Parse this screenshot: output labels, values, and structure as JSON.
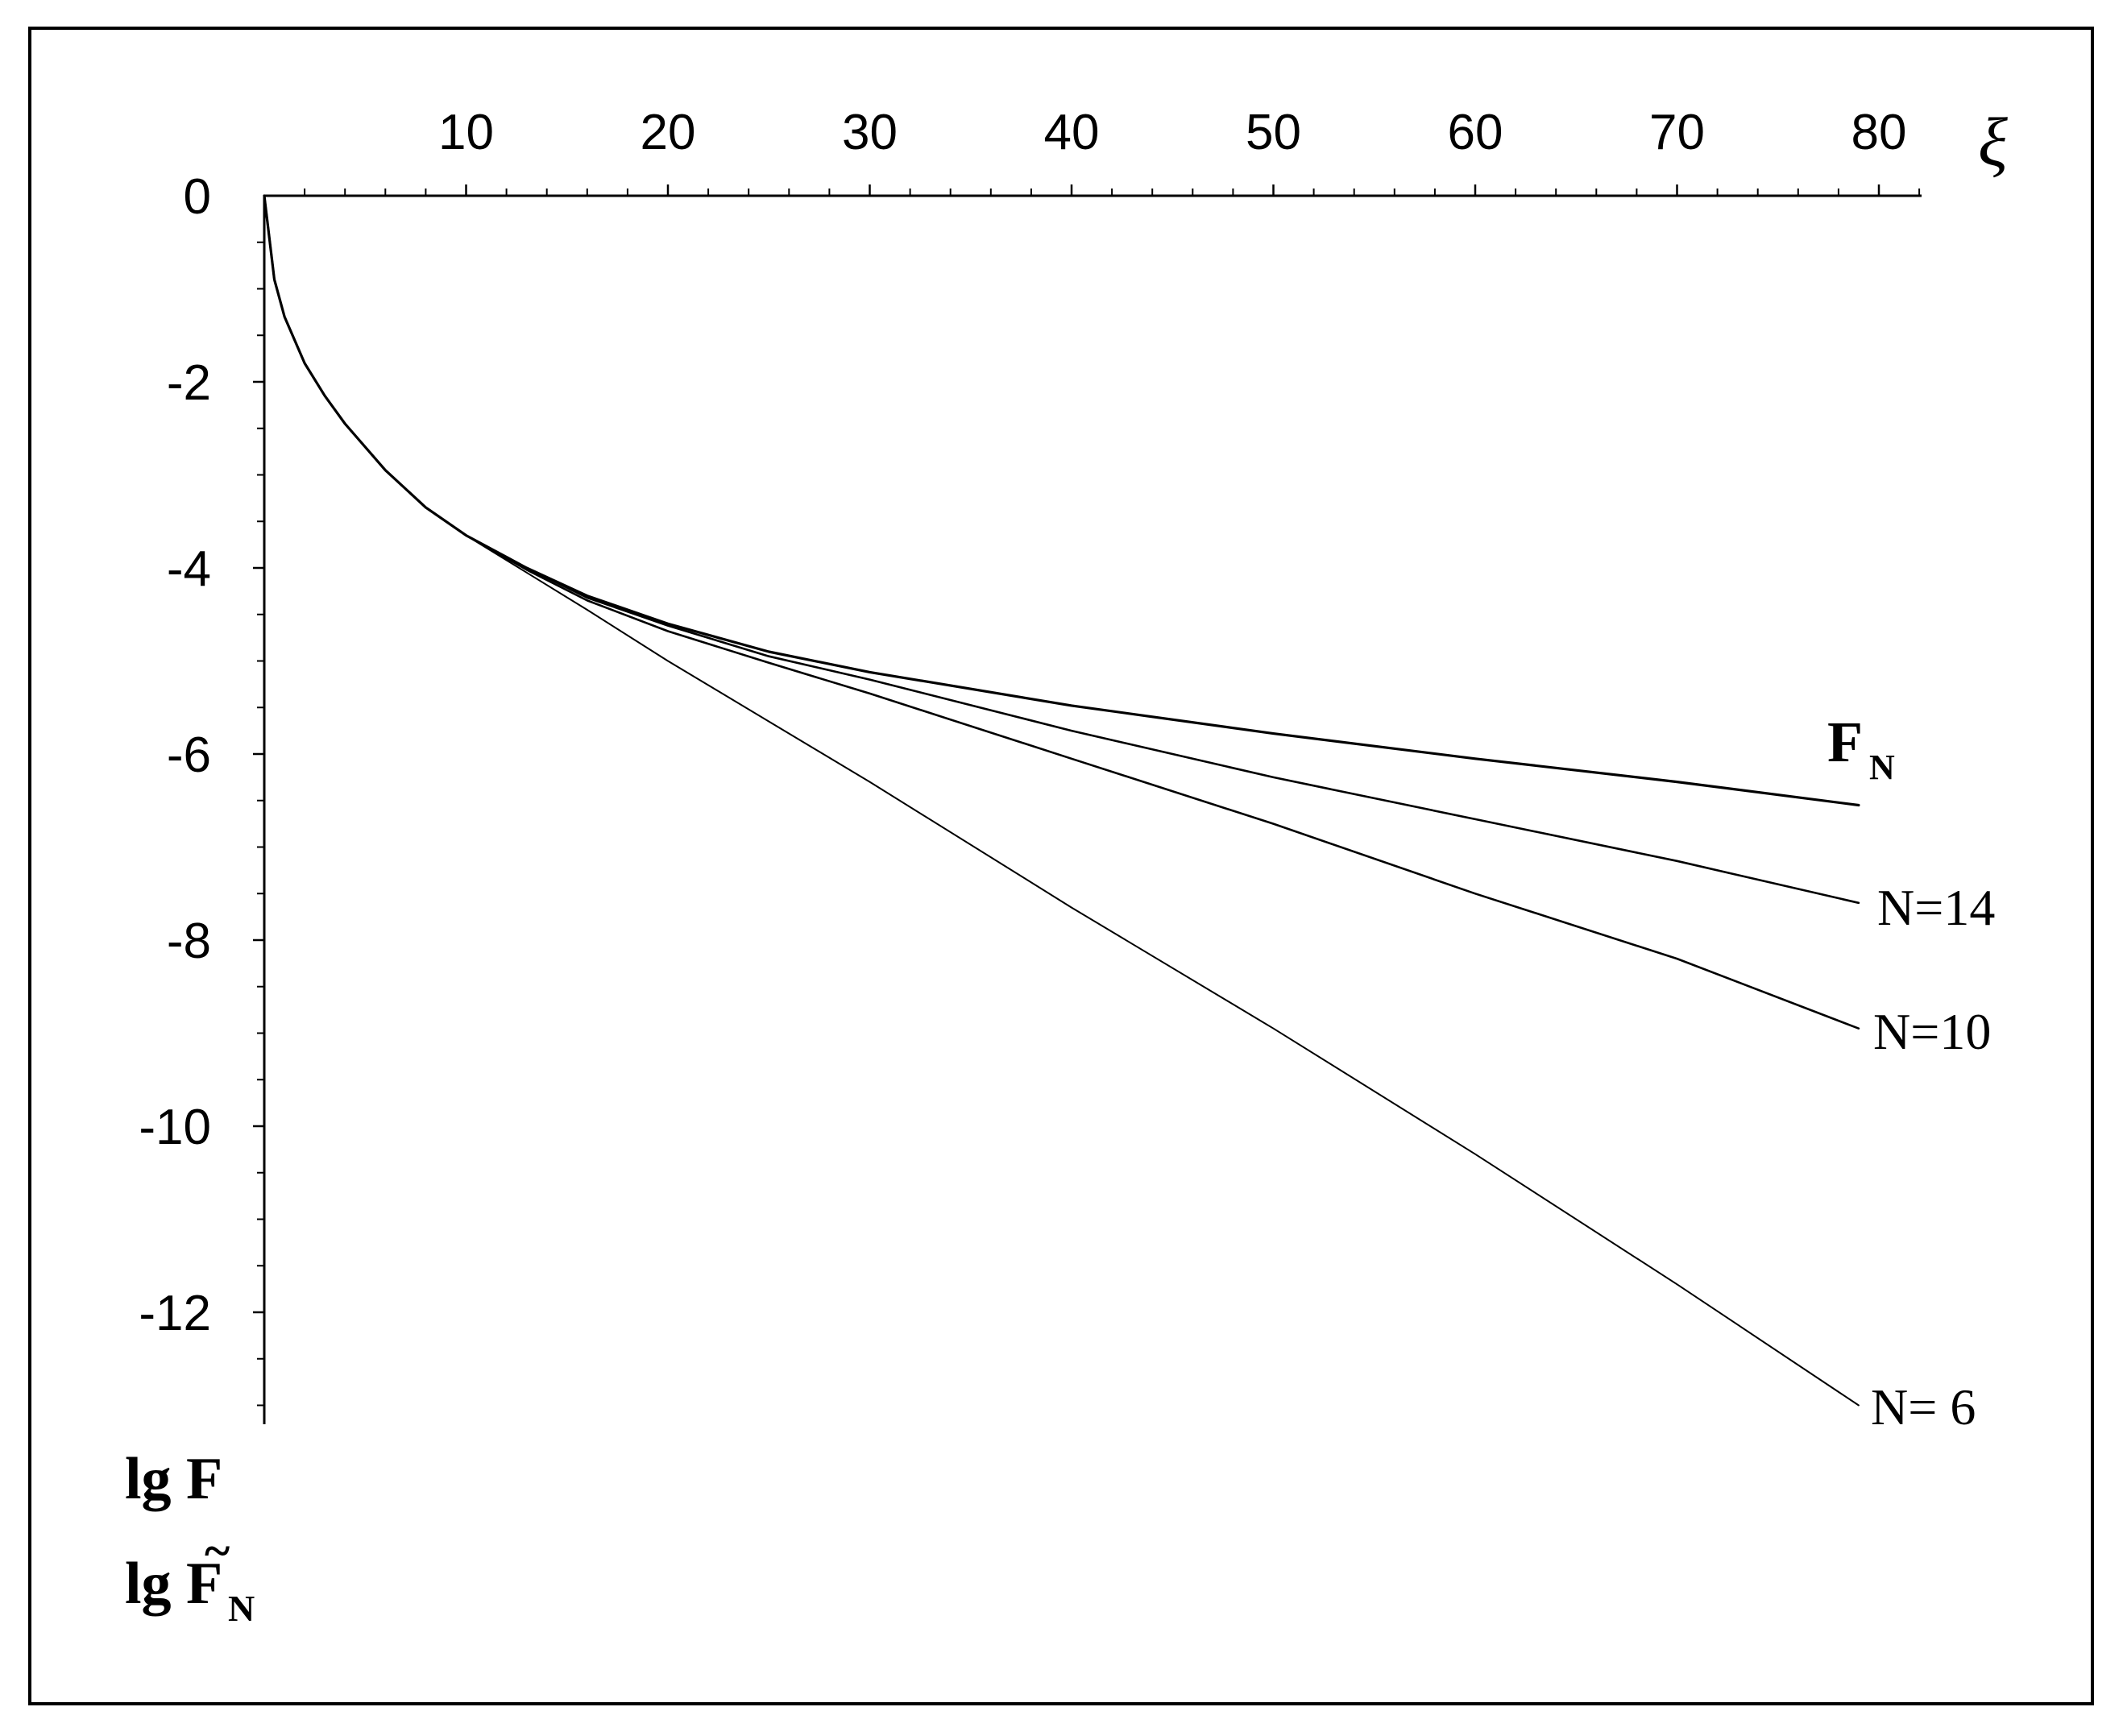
{
  "figure": {
    "ylabel_line1": "lg F",
    "ylabel_line2_main": "lg F",
    "ylabel_line2_sub": "N",
    "ylabel_tilde": "~",
    "xlabel": "ξ"
  },
  "chart_data": {
    "type": "line",
    "title": "",
    "xlabel": "ξ",
    "ylabel": "lg F, lg F̃_N",
    "xlim": [
      0,
      82
    ],
    "ylim": [
      -13,
      0
    ],
    "x_ticks": [
      10,
      20,
      30,
      40,
      50,
      60,
      70,
      80
    ],
    "y_ticks": [
      0,
      -2,
      -4,
      -6,
      -8,
      -10,
      -12
    ],
    "x_tick_labels": [
      "10",
      "20",
      "30",
      "40",
      "50",
      "60",
      "70",
      "80"
    ],
    "y_tick_labels": [
      "0",
      "-2",
      "-4",
      "-6",
      "-8",
      "-10",
      "-12"
    ],
    "grid": false,
    "series": [
      {
        "name": "F_N",
        "label_main": "F",
        "label_sub": "N",
        "stroke": 3.2,
        "points": [
          [
            0,
            0
          ],
          [
            0.5,
            -0.9
          ],
          [
            1,
            -1.3
          ],
          [
            2,
            -1.8
          ],
          [
            3,
            -2.15
          ],
          [
            4,
            -2.45
          ],
          [
            6,
            -2.95
          ],
          [
            8,
            -3.35
          ],
          [
            10,
            -3.65
          ],
          [
            13,
            -4.0
          ],
          [
            16,
            -4.3
          ],
          [
            20,
            -4.6
          ],
          [
            25,
            -4.9
          ],
          [
            30,
            -5.12
          ],
          [
            40,
            -5.48
          ],
          [
            50,
            -5.78
          ],
          [
            60,
            -6.05
          ],
          [
            70,
            -6.3
          ],
          [
            79,
            -6.55
          ]
        ]
      },
      {
        "name": "N=14",
        "label_main": "N=14",
        "label_sub": "",
        "stroke": 2.6,
        "points": [
          [
            0,
            0
          ],
          [
            0.5,
            -0.9
          ],
          [
            1,
            -1.3
          ],
          [
            2,
            -1.8
          ],
          [
            3,
            -2.15
          ],
          [
            4,
            -2.45
          ],
          [
            6,
            -2.95
          ],
          [
            8,
            -3.35
          ],
          [
            10,
            -3.65
          ],
          [
            13,
            -4.0
          ],
          [
            16,
            -4.32
          ],
          [
            20,
            -4.62
          ],
          [
            25,
            -4.95
          ],
          [
            30,
            -5.2
          ],
          [
            40,
            -5.75
          ],
          [
            50,
            -6.25
          ],
          [
            60,
            -6.7
          ],
          [
            70,
            -7.15
          ],
          [
            79,
            -7.6
          ]
        ]
      },
      {
        "name": "N=10",
        "label_main": "N=10",
        "label_sub": "",
        "stroke": 2.6,
        "points": [
          [
            0,
            0
          ],
          [
            0.5,
            -0.9
          ],
          [
            1,
            -1.3
          ],
          [
            2,
            -1.8
          ],
          [
            3,
            -2.15
          ],
          [
            4,
            -2.45
          ],
          [
            6,
            -2.95
          ],
          [
            8,
            -3.35
          ],
          [
            10,
            -3.65
          ],
          [
            13,
            -4.02
          ],
          [
            16,
            -4.35
          ],
          [
            20,
            -4.68
          ],
          [
            25,
            -5.02
          ],
          [
            30,
            -5.35
          ],
          [
            40,
            -6.05
          ],
          [
            50,
            -6.75
          ],
          [
            60,
            -7.5
          ],
          [
            70,
            -8.2
          ],
          [
            79,
            -8.95
          ]
        ]
      },
      {
        "name": "N= 6",
        "label_main": "N= 6",
        "label_sub": "",
        "stroke": 2.0,
        "points": [
          [
            0,
            0
          ],
          [
            0.5,
            -0.9
          ],
          [
            1,
            -1.3
          ],
          [
            2,
            -1.8
          ],
          [
            3,
            -2.15
          ],
          [
            4,
            -2.45
          ],
          [
            6,
            -2.95
          ],
          [
            8,
            -3.35
          ],
          [
            10,
            -3.65
          ],
          [
            13,
            -4.05
          ],
          [
            16,
            -4.45
          ],
          [
            20,
            -5.0
          ],
          [
            25,
            -5.65
          ],
          [
            30,
            -6.3
          ],
          [
            40,
            -7.65
          ],
          [
            50,
            -8.95
          ],
          [
            60,
            -10.3
          ],
          [
            70,
            -11.7
          ],
          [
            79,
            -13.0
          ]
        ]
      }
    ]
  }
}
